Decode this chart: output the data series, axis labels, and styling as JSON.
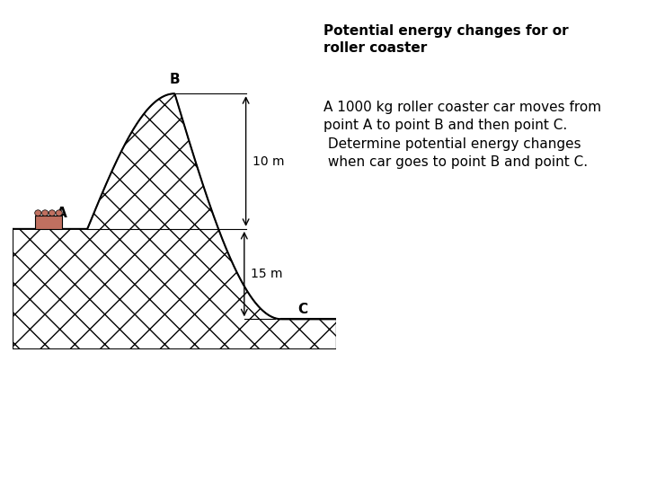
{
  "title_line1": "Potential energy changes for or",
  "title_line2": "roller coaster",
  "body_line1": "A 1000 kg roller coaster car moves from",
  "body_line2": "point A to point B and then point C.",
  "body_line3": " Determine potential energy changes",
  "body_line4": " when car goes to point B and point C.",
  "title_fontsize": 11,
  "body_fontsize": 11,
  "background_color": "#ffffff",
  "label_A": "A",
  "label_B": "B",
  "label_C": "C",
  "dim_10m": "10 m",
  "dim_15m": "15 m",
  "car_color": "#c07060",
  "hatch_pattern": "x",
  "ground_color": "#ffffff",
  "outline_color": "#000000"
}
